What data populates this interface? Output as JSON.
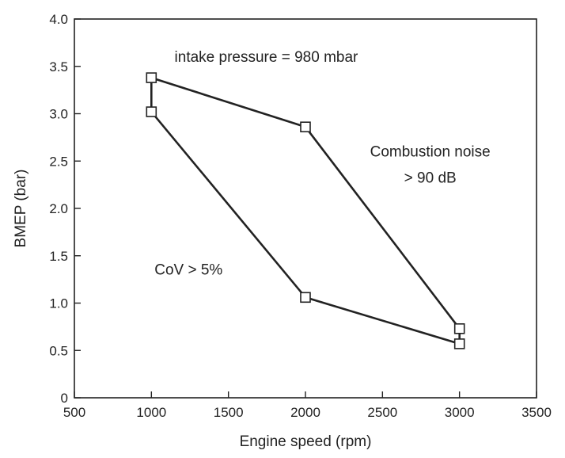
{
  "chart_data": {
    "type": "line",
    "title": "",
    "xlabel": "Engine speed (rpm)",
    "ylabel": "BMEP (bar)",
    "xlim": [
      500,
      3500
    ],
    "ylim": [
      0,
      4.0
    ],
    "xticks": [
      500,
      1000,
      1500,
      2000,
      2500,
      3000,
      3500
    ],
    "yticks": [
      0,
      0.5,
      1.0,
      1.5,
      2.0,
      2.5,
      3.0,
      3.5,
      4.0
    ],
    "xtick_labels": [
      "500",
      "1000",
      "1500",
      "2000",
      "2500",
      "3000",
      "3500"
    ],
    "ytick_labels": [
      "0",
      "0.5",
      "1.0",
      "1.5",
      "2.0",
      "2.5",
      "3.0",
      "3.5",
      "4.0"
    ],
    "grid": false,
    "marker": "square",
    "series": [
      {
        "points": [
          {
            "x": 1000,
            "y": 3.38
          },
          {
            "x": 2000,
            "y": 2.86
          },
          {
            "x": 3000,
            "y": 0.73
          },
          {
            "x": 3000,
            "y": 0.57
          },
          {
            "x": 2000,
            "y": 1.06
          },
          {
            "x": 1000,
            "y": 3.02
          },
          {
            "x": 1000,
            "y": 3.38
          }
        ]
      }
    ],
    "annotations": [
      {
        "text": "intake pressure = 980 mbar",
        "x": 1150,
        "y": 3.55
      },
      {
        "text": "Combustion noise",
        "x": 2810,
        "y": 2.55
      },
      {
        "text": "> 90 dB",
        "x": 2810,
        "y": 2.27
      },
      {
        "text": "CoV > 5%",
        "x": 1020,
        "y": 1.3
      }
    ]
  }
}
